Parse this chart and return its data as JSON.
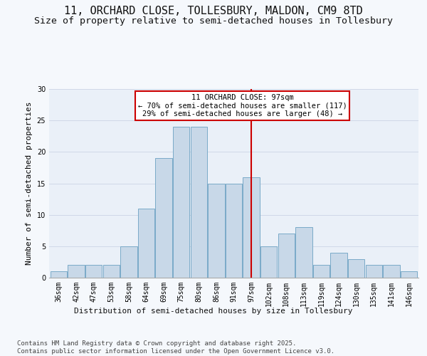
{
  "title_line1": "11, ORCHARD CLOSE, TOLLESBURY, MALDON, CM9 8TD",
  "title_line2": "Size of property relative to semi-detached houses in Tollesbury",
  "xlabel": "Distribution of semi-detached houses by size in Tollesbury",
  "ylabel": "Number of semi-detached properties",
  "bin_labels": [
    "36sqm",
    "42sqm",
    "47sqm",
    "53sqm",
    "58sqm",
    "64sqm",
    "69sqm",
    "75sqm",
    "80sqm",
    "86sqm",
    "91sqm",
    "97sqm",
    "102sqm",
    "108sqm",
    "113sqm",
    "119sqm",
    "124sqm",
    "130sqm",
    "135sqm",
    "141sqm",
    "146sqm"
  ],
  "bar_heights": [
    1,
    2,
    2,
    2,
    5,
    11,
    19,
    24,
    24,
    15,
    15,
    16,
    5,
    7,
    8,
    2,
    4,
    3,
    2,
    2,
    1
  ],
  "bar_color": "#c8d8e8",
  "bar_edge_color": "#7aaac8",
  "vline_x": 11,
  "vline_color": "#cc0000",
  "annotation_text": "11 ORCHARD CLOSE: 97sqm\n← 70% of semi-detached houses are smaller (117)\n29% of semi-detached houses are larger (48) →",
  "annotation_box_color": "#ffffff",
  "annotation_box_edge": "#cc0000",
  "ylim": [
    0,
    30
  ],
  "yticks": [
    0,
    5,
    10,
    15,
    20,
    25,
    30
  ],
  "grid_color": "#d0d8e8",
  "background_color": "#eaf0f8",
  "fig_background_color": "#f5f8fc",
  "footer_text": "Contains HM Land Registry data © Crown copyright and database right 2025.\nContains public sector information licensed under the Open Government Licence v3.0.",
  "title_fontsize": 11,
  "subtitle_fontsize": 9.5,
  "axis_label_fontsize": 8,
  "tick_fontsize": 7,
  "annotation_fontsize": 7.5,
  "footer_fontsize": 6.5
}
